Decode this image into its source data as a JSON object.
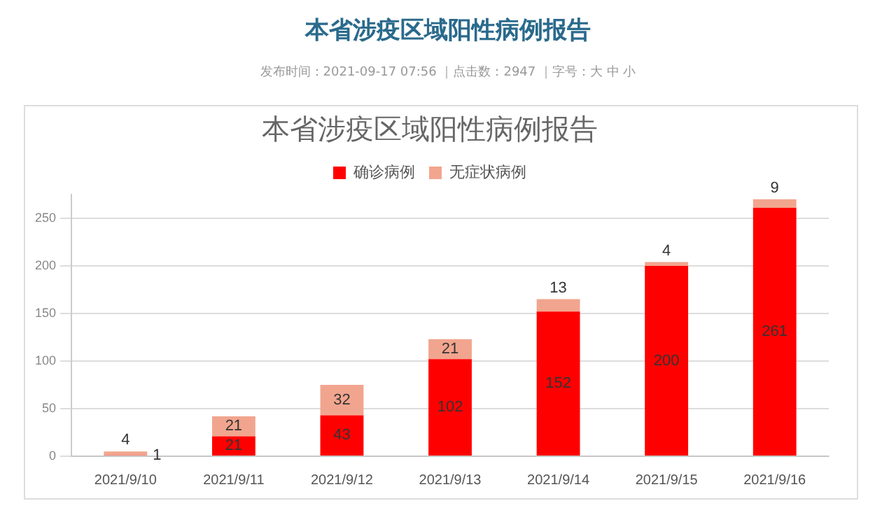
{
  "chart_data": {
    "type": "bar",
    "title": "本省涉疫区域阳性病例报告",
    "annotations": [
      "本省涉疫区域阳性病例报告",
      "发布时间：2021-09-17 07:56 ｜点击数：2947 ｜字号：大 中 小"
    ],
    "categories": [
      "2021/9/10",
      "2021/9/11",
      "2021/9/12",
      "2021/9/13",
      "2021/9/14",
      "2021/9/15",
      "2021/9/16"
    ],
    "series": [
      {
        "name": "确诊病例",
        "color": "#ff0000",
        "values": [
          1,
          21,
          43,
          102,
          152,
          200,
          261
        ]
      },
      {
        "name": "无症状病例",
        "color": "#f2a58e",
        "values": [
          4,
          21,
          32,
          21,
          13,
          4,
          9
        ]
      }
    ],
    "stacked": true,
    "ylim": [
      0,
      275
    ],
    "yticks": [
      0,
      50,
      100,
      150,
      200,
      250
    ],
    "grid": "y",
    "legend": "top",
    "data_labels": true
  }
}
